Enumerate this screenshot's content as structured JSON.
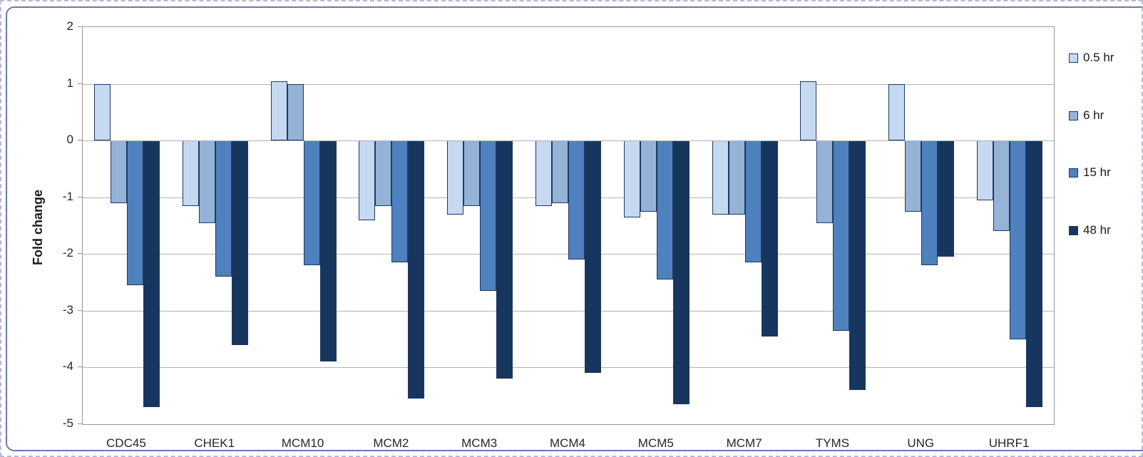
{
  "chart_data": {
    "type": "bar",
    "title": "",
    "xlabel": "",
    "ylabel": "Fold change",
    "categories": [
      "CDC45",
      "CHEK1",
      "MCM10",
      "MCM2",
      "MCM3",
      "MCM4",
      "MCM5",
      "MCM7",
      "TYMS",
      "UNG",
      "UHRF1"
    ],
    "series": [
      {
        "name": "0.5 hr",
        "color": "#c5d9f1",
        "values": [
          1.0,
          -1.15,
          1.05,
          -1.4,
          -1.3,
          -1.15,
          -1.35,
          -1.3,
          1.05,
          1.0,
          -1.05
        ]
      },
      {
        "name": "6 hr",
        "color": "#95b3d7",
        "values": [
          -1.1,
          -1.45,
          1.0,
          -1.15,
          -1.15,
          -1.1,
          -1.25,
          -1.3,
          -1.45,
          -1.25,
          -1.6
        ]
      },
      {
        "name": "15 hr",
        "color": "#4e81bd",
        "values": [
          -2.55,
          -2.4,
          -2.2,
          -2.15,
          -2.65,
          -2.1,
          -2.45,
          -2.15,
          -3.35,
          -2.2,
          -3.5
        ]
      },
      {
        "name": "48 hr",
        "color": "#17365d",
        "values": [
          -4.7,
          -3.6,
          -3.9,
          -4.55,
          -4.2,
          -4.1,
          -4.65,
          -3.45,
          -4.4,
          -2.05,
          -4.7
        ]
      }
    ],
    "ylim": [
      -5,
      2
    ],
    "yticks": [
      2,
      1,
      0,
      -1,
      -2,
      -3,
      -4,
      -5
    ],
    "grid": true,
    "legend_position": "right",
    "bar_border_color": "#1f3864",
    "gridline_color": "#b3b3b3"
  }
}
